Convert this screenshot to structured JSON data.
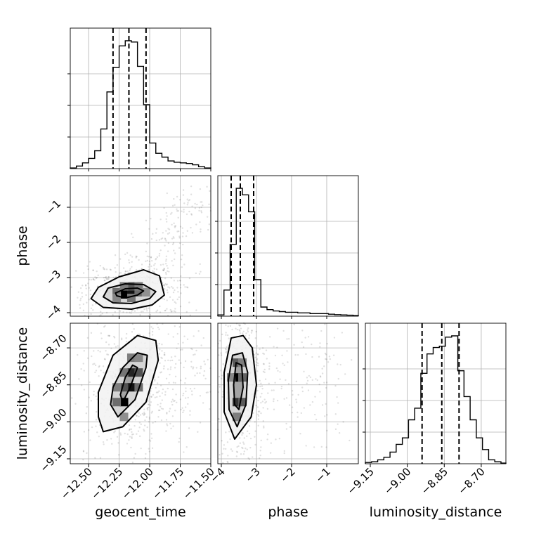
{
  "chart_data": {
    "type": "corner",
    "parameters": [
      "geocent_time",
      "phase",
      "luminosity_distance"
    ],
    "axis_labels": {
      "x": [
        "geocent_time",
        "phase",
        "luminosity_distance"
      ],
      "y": [
        "",
        "phase",
        "luminosity_distance"
      ]
    },
    "ranges": {
      "geocent_time": [
        -12.65,
        -11.5
      ],
      "phase": [
        -4.1,
        -0.1
      ],
      "luminosity_distance": [
        -9.17,
        -8.6
      ]
    },
    "ticks": {
      "geocent_time": [
        {
          "value": -12.5,
          "label": "−12.50"
        },
        {
          "value": -12.25,
          "label": "−12.25"
        },
        {
          "value": -12.0,
          "label": "−12.00"
        },
        {
          "value": -11.75,
          "label": "−11.75"
        },
        {
          "value": -11.5,
          "label": "−11.50"
        }
      ],
      "phase": [
        {
          "value": -4,
          "label": "−4"
        },
        {
          "value": -3,
          "label": "−3"
        },
        {
          "value": -2,
          "label": "−2"
        },
        {
          "value": -1,
          "label": "−1"
        }
      ],
      "luminosity_distance": [
        {
          "value": -9.15,
          "label": "−9.15"
        },
        {
          "value": -9.0,
          "label": "−9.00"
        },
        {
          "value": -8.85,
          "label": "−8.85"
        },
        {
          "value": -8.7,
          "label": "−8.70"
        }
      ]
    },
    "quantiles": {
      "geocent_time": [
        -12.3,
        -12.17,
        -12.03
      ],
      "phase": [
        -3.72,
        -3.46,
        -3.08
      ],
      "luminosity_distance": [
        -8.94,
        -8.86,
        -8.79
      ]
    },
    "histograms": {
      "geocent_time": {
        "edges": [
          -12.65,
          -12.6,
          -12.55,
          -12.5,
          -12.45,
          -12.4,
          -12.35,
          -12.3,
          -12.25,
          -12.2,
          -12.15,
          -12.1,
          -12.05,
          -12.0,
          -11.95,
          -11.9,
          -11.85,
          -11.8,
          -11.75,
          -11.7,
          -11.65,
          -11.6,
          -11.55,
          -11.5
        ],
        "counts": [
          0.005,
          0.02,
          0.045,
          0.08,
          0.14,
          0.31,
          0.6,
          0.79,
          0.96,
          1.0,
          0.99,
          0.8,
          0.5,
          0.2,
          0.12,
          0.09,
          0.06,
          0.05,
          0.045,
          0.04,
          0.03,
          0.015,
          0.005
        ]
      },
      "phase": {
        "edges": [
          -4.1,
          -3.925,
          -3.75,
          -3.575,
          -3.4,
          -3.225,
          -3.05,
          -2.875,
          -2.7,
          -2.525,
          -2.35,
          -2.175,
          -2.0,
          -1.825,
          -1.65,
          -1.475,
          -1.3,
          -1.125,
          -0.95,
          -0.775,
          -0.6,
          -0.425,
          -0.25,
          -0.1
        ],
        "counts": [
          0.01,
          0.2,
          0.55,
          0.98,
          0.93,
          0.8,
          0.28,
          0.07,
          0.05,
          0.04,
          0.035,
          0.03,
          0.03,
          0.025,
          0.025,
          0.02,
          0.02,
          0.02,
          0.015,
          0.012,
          0.01,
          0.008,
          0.005
        ]
      },
      "luminosity_distance": {
        "edges": [
          -9.17,
          -9.145,
          -9.12,
          -9.095,
          -9.07,
          -9.045,
          -9.02,
          -8.995,
          -8.97,
          -8.945,
          -8.92,
          -8.895,
          -8.87,
          -8.845,
          -8.82,
          -8.795,
          -8.77,
          -8.745,
          -8.72,
          -8.695,
          -8.67,
          -8.645,
          -8.62,
          -8.6
        ],
        "counts": [
          0.01,
          0.015,
          0.03,
          0.05,
          0.09,
          0.15,
          0.2,
          0.34,
          0.43,
          0.7,
          0.85,
          0.9,
          0.91,
          0.98,
          0.99,
          0.72,
          0.52,
          0.34,
          0.2,
          0.11,
          0.03,
          0.015,
          0.005
        ]
      }
    },
    "pairs": [
      {
        "x": "geocent_time",
        "y": "phase",
        "contours": [
          [
            [
              -12.27,
              -3.52
            ],
            [
              -12.2,
              -3.58
            ],
            [
              -12.1,
              -3.5
            ],
            [
              -12.05,
              -3.38
            ],
            [
              -12.1,
              -3.3
            ],
            [
              -12.2,
              -3.32
            ],
            [
              -12.28,
              -3.44
            ]
          ],
          [
            [
              -12.38,
              -3.55
            ],
            [
              -12.3,
              -3.72
            ],
            [
              -12.15,
              -3.74
            ],
            [
              -12.0,
              -3.6
            ],
            [
              -11.95,
              -3.4
            ],
            [
              -12.05,
              -3.2
            ],
            [
              -12.2,
              -3.18
            ],
            [
              -12.34,
              -3.3
            ]
          ],
          [
            [
              -12.48,
              -3.6
            ],
            [
              -12.38,
              -3.85
            ],
            [
              -12.15,
              -3.9
            ],
            [
              -11.98,
              -3.78
            ],
            [
              -11.88,
              -3.5
            ],
            [
              -11.92,
              -2.95
            ],
            [
              -12.05,
              -2.78
            ],
            [
              -12.25,
              -2.98
            ],
            [
              -12.42,
              -3.28
            ]
          ]
        ],
        "density": [
          {
            "x": -12.21,
            "y": -3.48,
            "level": 1.0
          },
          {
            "x": -12.15,
            "y": -3.42,
            "level": 0.9
          },
          {
            "x": -12.15,
            "y": -3.25,
            "level": 0.5
          },
          {
            "x": -12.27,
            "y": -3.42,
            "level": 0.4
          },
          {
            "x": -12.09,
            "y": -3.42,
            "level": 0.4
          },
          {
            "x": -12.21,
            "y": -3.25,
            "level": 0.3
          },
          {
            "x": -12.09,
            "y": -3.25,
            "level": 0.3
          },
          {
            "x": -12.27,
            "y": -3.58,
            "level": 0.25
          },
          {
            "x": -12.15,
            "y": -3.58,
            "level": 0.35
          },
          {
            "x": -12.03,
            "y": -3.42,
            "level": 0.2
          }
        ]
      },
      {
        "x": "geocent_time",
        "y": "luminosity_distance",
        "contours": [
          [
            [
              -12.24,
              -8.89
            ],
            [
              -12.22,
              -8.92
            ],
            [
              -12.16,
              -8.86
            ],
            [
              -12.1,
              -8.78
            ],
            [
              -12.14,
              -8.77
            ],
            [
              -12.2,
              -8.82
            ]
          ],
          [
            [
              -12.32,
              -8.93
            ],
            [
              -12.26,
              -8.98
            ],
            [
              -12.12,
              -8.91
            ],
            [
              -12.03,
              -8.78
            ],
            [
              -12.02,
              -8.73
            ],
            [
              -12.1,
              -8.72
            ],
            [
              -12.22,
              -8.78
            ],
            [
              -12.3,
              -8.86
            ]
          ],
          [
            [
              -12.42,
              -8.98
            ],
            [
              -12.38,
              -9.04
            ],
            [
              -12.22,
              -9.02
            ],
            [
              -12.03,
              -8.92
            ],
            [
              -11.93,
              -8.75
            ],
            [
              -11.95,
              -8.67
            ],
            [
              -12.1,
              -8.65
            ],
            [
              -12.3,
              -8.73
            ],
            [
              -12.42,
              -8.88
            ]
          ]
        ],
        "density": [
          {
            "x": -12.21,
            "y": -8.92,
            "level": 1.0
          },
          {
            "x": -12.15,
            "y": -8.86,
            "level": 0.9
          },
          {
            "x": -12.15,
            "y": -8.8,
            "level": 0.8
          },
          {
            "x": -12.21,
            "y": -8.86,
            "level": 0.55
          },
          {
            "x": -12.09,
            "y": -8.8,
            "level": 0.55
          },
          {
            "x": -12.27,
            "y": -8.92,
            "level": 0.4
          },
          {
            "x": -12.09,
            "y": -8.86,
            "level": 0.4
          },
          {
            "x": -12.21,
            "y": -8.8,
            "level": 0.35
          },
          {
            "x": -12.27,
            "y": -8.86,
            "level": 0.3
          },
          {
            "x": -12.15,
            "y": -8.74,
            "level": 0.3
          },
          {
            "x": -12.09,
            "y": -8.74,
            "level": 0.25
          },
          {
            "x": -12.21,
            "y": -8.98,
            "level": 0.2
          }
        ]
      },
      {
        "x": "phase",
        "y": "luminosity_distance",
        "contours": [
          [
            [
              -3.62,
              -8.93
            ],
            [
              -3.5,
              -8.95
            ],
            [
              -3.38,
              -8.86
            ],
            [
              -3.42,
              -8.77
            ],
            [
              -3.58,
              -8.76
            ],
            [
              -3.65,
              -8.85
            ]
          ],
          [
            [
              -3.78,
              -8.95
            ],
            [
              -3.55,
              -9.02
            ],
            [
              -3.3,
              -8.93
            ],
            [
              -3.25,
              -8.8
            ],
            [
              -3.4,
              -8.72
            ],
            [
              -3.68,
              -8.73
            ],
            [
              -3.8,
              -8.83
            ]
          ],
          [
            [
              -3.92,
              -8.96
            ],
            [
              -3.62,
              -9.07
            ],
            [
              -3.15,
              -8.98
            ],
            [
              -3.0,
              -8.85
            ],
            [
              -3.12,
              -8.7
            ],
            [
              -3.38,
              -8.65
            ],
            [
              -3.72,
              -8.66
            ],
            [
              -3.92,
              -8.8
            ]
          ]
        ],
        "density": [
          {
            "x": -3.56,
            "y": -8.82,
            "level": 1.0
          },
          {
            "x": -3.56,
            "y": -8.92,
            "level": 0.7
          },
          {
            "x": -3.4,
            "y": -8.92,
            "level": 0.5
          },
          {
            "x": -3.56,
            "y": -8.76,
            "level": 0.5
          },
          {
            "x": -3.4,
            "y": -8.82,
            "level": 0.45
          },
          {
            "x": -3.4,
            "y": -8.76,
            "level": 0.3
          },
          {
            "x": -3.72,
            "y": -8.82,
            "level": 0.25
          },
          {
            "x": -3.56,
            "y": -8.98,
            "level": 0.3
          }
        ]
      }
    ]
  }
}
